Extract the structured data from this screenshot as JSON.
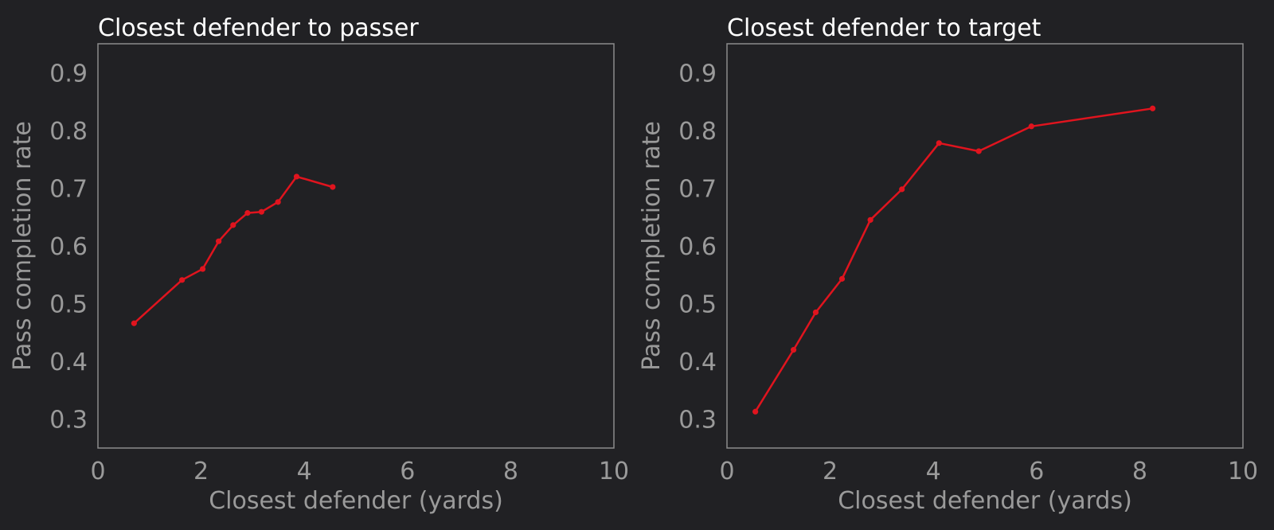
{
  "chart_data": [
    {
      "type": "line",
      "title": "Closest defender to passer",
      "xlabel": "Closest defender (yards)",
      "ylabel": "Pass completion rate",
      "xlim": [
        0,
        10
      ],
      "ylim": [
        0.25,
        0.95
      ],
      "xticks": [
        "0",
        "2",
        "4",
        "6",
        "8",
        "10"
      ],
      "yticks": [
        "0.3",
        "0.4",
        "0.5",
        "0.6",
        "0.7",
        "0.8",
        "0.9"
      ],
      "grid": false,
      "color": "#e0141e",
      "x": [
        0.7,
        1.63,
        2.03,
        2.34,
        2.62,
        2.9,
        3.17,
        3.49,
        3.85,
        4.55
      ],
      "y": [
        0.466,
        0.541,
        0.56,
        0.608,
        0.636,
        0.657,
        0.659,
        0.676,
        0.72,
        0.702
      ]
    },
    {
      "type": "line",
      "title": "Closest defender to target",
      "xlabel": "Closest defender (yards)",
      "ylabel": "Pass completion rate",
      "xlim": [
        0,
        10
      ],
      "ylim": [
        0.25,
        0.95
      ],
      "xticks": [
        "0",
        "2",
        "4",
        "6",
        "8",
        "10"
      ],
      "yticks": [
        "0.3",
        "0.4",
        "0.5",
        "0.6",
        "0.7",
        "0.8",
        "0.9"
      ],
      "grid": false,
      "color": "#e0141e",
      "x": [
        0.55,
        1.29,
        1.72,
        2.23,
        2.78,
        3.39,
        4.11,
        4.88,
        5.9,
        8.25
      ],
      "y": [
        0.313,
        0.42,
        0.485,
        0.543,
        0.645,
        0.698,
        0.778,
        0.764,
        0.807,
        0.838
      ]
    }
  ]
}
